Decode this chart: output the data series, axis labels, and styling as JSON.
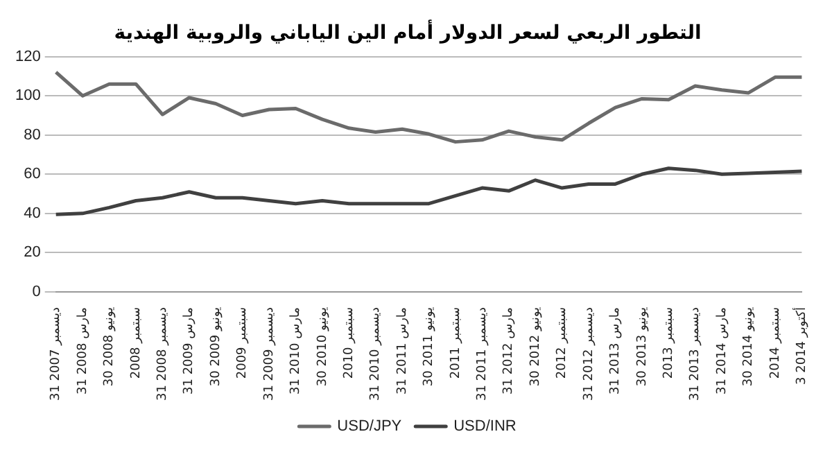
{
  "chart_data": {
    "type": "line",
    "title": "التطور الربعي لسعر الدولار أمام الين الياباني والروبية الهندية",
    "categories": [
      "31 ديسمبر 2007",
      "31 مارس 2008",
      "30 يونيو 2008",
      "سبتمبر 2008",
      "31 ديسمبر 2008",
      "31 مارس 2009",
      "30 يونيو 2009",
      "سبتمبر 2009",
      "31 ديسمبر 2009",
      "31 مارس 2010",
      "30 يونيو 2010",
      "سبتمبر 2010",
      "31 ديسمبر 2010",
      "31 مارس 2011",
      "30 يونيو 2011",
      "سبتمبر 2011",
      "31 ديسمبر 2011",
      "31 مارس 2012",
      "30 يونيو 2012",
      "سبتمبر 2012",
      "31 ديسمبر 2012",
      "31 مارس 2013",
      "30 يونيو 2013",
      "سبتمبر 2013",
      "31 ديسمبر 2013",
      "31 مارس 2014",
      "30 يونيو 2014",
      "سبتمبر 2014",
      "3 أكتوبر 2014"
    ],
    "series": [
      {
        "name": "USD/JPY",
        "color": "#6b6b6b",
        "values": [
          112,
          100,
          106,
          106,
          90.5,
          99,
          96,
          90,
          93,
          93.5,
          88,
          83.5,
          81.5,
          83,
          80.5,
          76.5,
          77.5,
          82,
          79,
          77.5,
          86,
          94,
          98.5,
          98,
          105,
          103,
          101.5,
          109.5,
          109.5
        ]
      },
      {
        "name": "USD/INR",
        "color": "#404040",
        "values": [
          39.5,
          40,
          43,
          46.5,
          48,
          51,
          48,
          48,
          46.5,
          45,
          46.5,
          45,
          45,
          45,
          45,
          49,
          53,
          51.5,
          57,
          53,
          55,
          55,
          60,
          63,
          62,
          60,
          60.5,
          61,
          61.5
        ]
      }
    ],
    "ylim": [
      0,
      120
    ],
    "yticks": [
      0,
      20,
      40,
      60,
      80,
      100,
      120
    ],
    "grid": "y",
    "legend": "bottom",
    "marker": "none",
    "line_style": "solid"
  }
}
